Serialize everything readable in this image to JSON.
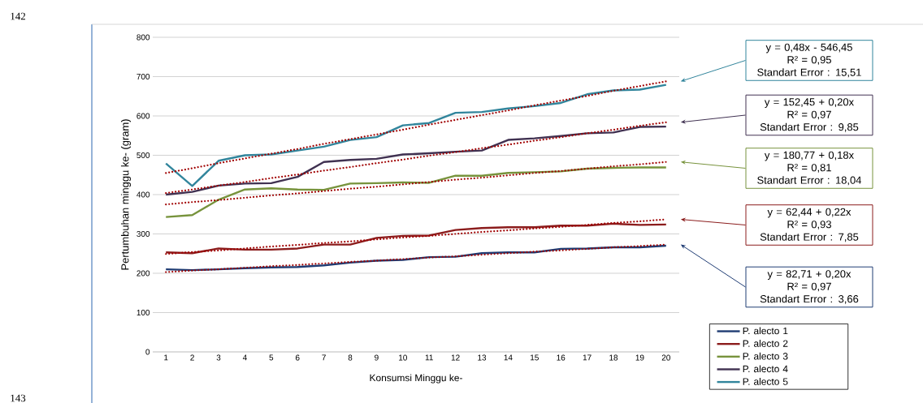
{
  "chart_data": {
    "type": "line",
    "xlabel": "Konsumsi Minggu ke-",
    "ylabel": "Pertumbuhan minggu ke- (gram)",
    "x": [
      1,
      2,
      3,
      4,
      5,
      6,
      7,
      8,
      9,
      10,
      11,
      12,
      13,
      14,
      15,
      16,
      17,
      18,
      19,
      20
    ],
    "xlim": [
      0.5,
      20.5
    ],
    "xticks": [
      1,
      2,
      3,
      4,
      5,
      6,
      7,
      8,
      9,
      10,
      11,
      12,
      13,
      14,
      15,
      16,
      17,
      18,
      19,
      20
    ],
    "ylim": [
      0,
      800
    ],
    "yticks": [
      0,
      100,
      200,
      300,
      400,
      500,
      600,
      700,
      800
    ],
    "grid": "y",
    "legend": "bottom right",
    "marker": "none",
    "line_style": "solid",
    "series": [
      {
        "name": "P. alecto 1",
        "color": "#1f3c73",
        "values": [
          210,
          208,
          210,
          213,
          215,
          216,
          220,
          227,
          232,
          234,
          241,
          242,
          251,
          253,
          253,
          262,
          263,
          266,
          266,
          270
        ]
      },
      {
        "name": "P. alecto 2",
        "color": "#8b1c1c",
        "values": [
          253,
          251,
          263,
          260,
          260,
          263,
          273,
          273,
          290,
          295,
          296,
          310,
          315,
          317,
          317,
          321,
          321,
          326,
          323,
          324
        ]
      },
      {
        "name": "P. alecto 3",
        "color": "#77933c",
        "values": [
          343,
          348,
          387,
          413,
          416,
          413,
          412,
          428,
          429,
          431,
          430,
          448,
          448,
          455,
          457,
          459,
          466,
          468,
          469,
          469
        ]
      },
      {
        "name": "P. alecto 4",
        "color": "#403151",
        "values": [
          400,
          407,
          423,
          428,
          429,
          445,
          483,
          488,
          491,
          502,
          505,
          509,
          512,
          539,
          543,
          549,
          556,
          558,
          572,
          573
        ]
      },
      {
        "name": "P. alecto 5",
        "color": "#31859c",
        "values": [
          479,
          422,
          486,
          500,
          502,
          512,
          522,
          539,
          546,
          576,
          582,
          608,
          610,
          619,
          625,
          633,
          655,
          665,
          667,
          679
        ]
      },
      {
        "type": "line",
        "line_style": "dotted",
        "color": "#a00000",
        "values": [
          455,
          467,
          480,
          492,
          504,
          516,
          529,
          541,
          553,
          565,
          578,
          590,
          602,
          614,
          627,
          639,
          651,
          664,
          676,
          688
        ]
      },
      {
        "type": "line",
        "line_style": "dotted",
        "color": "#a00000",
        "values": [
          404,
          413,
          423,
          432,
          442,
          451,
          461,
          470,
          480,
          489,
          499,
          508,
          518,
          527,
          537,
          546,
          556,
          565,
          575,
          584
        ]
      },
      {
        "type": "line",
        "line_style": "dotted",
        "color": "#a00000",
        "values": [
          375,
          381,
          386,
          392,
          398,
          403,
          409,
          415,
          420,
          426,
          432,
          438,
          443,
          449,
          455,
          460,
          466,
          472,
          477,
          483
        ]
      },
      {
        "type": "line",
        "line_style": "dotted",
        "color": "#a00000",
        "values": [
          249,
          254,
          258,
          263,
          268,
          272,
          277,
          281,
          286,
          291,
          295,
          300,
          305,
          309,
          314,
          318,
          323,
          328,
          332,
          337
        ]
      },
      {
        "type": "line",
        "line_style": "dotted",
        "color": "#a00000",
        "values": [
          203,
          207,
          210,
          214,
          218,
          221,
          225,
          229,
          232,
          236,
          240,
          243,
          247,
          251,
          255,
          258,
          262,
          266,
          269,
          273
        ]
      }
    ],
    "annotations": [
      "142",
      "y = 0,48x - 546,45",
      "R² = 0,95",
      "Standart Error : 15,51",
      "y = 152,45 + 0,20x",
      "R² = 0,97",
      "Standart Error : 9,85",
      "y = 180,77 + 0,18x",
      "R² = 0,81",
      "Standart Error : 18,04",
      "y = 62,44 + 0,22x",
      "R² = 0,93",
      "Standart Error : 7,85",
      "y = 82,71 + 0,20x",
      "R² = 0,97",
      "Standart Error : 3,66",
      "143"
    ]
  }
}
